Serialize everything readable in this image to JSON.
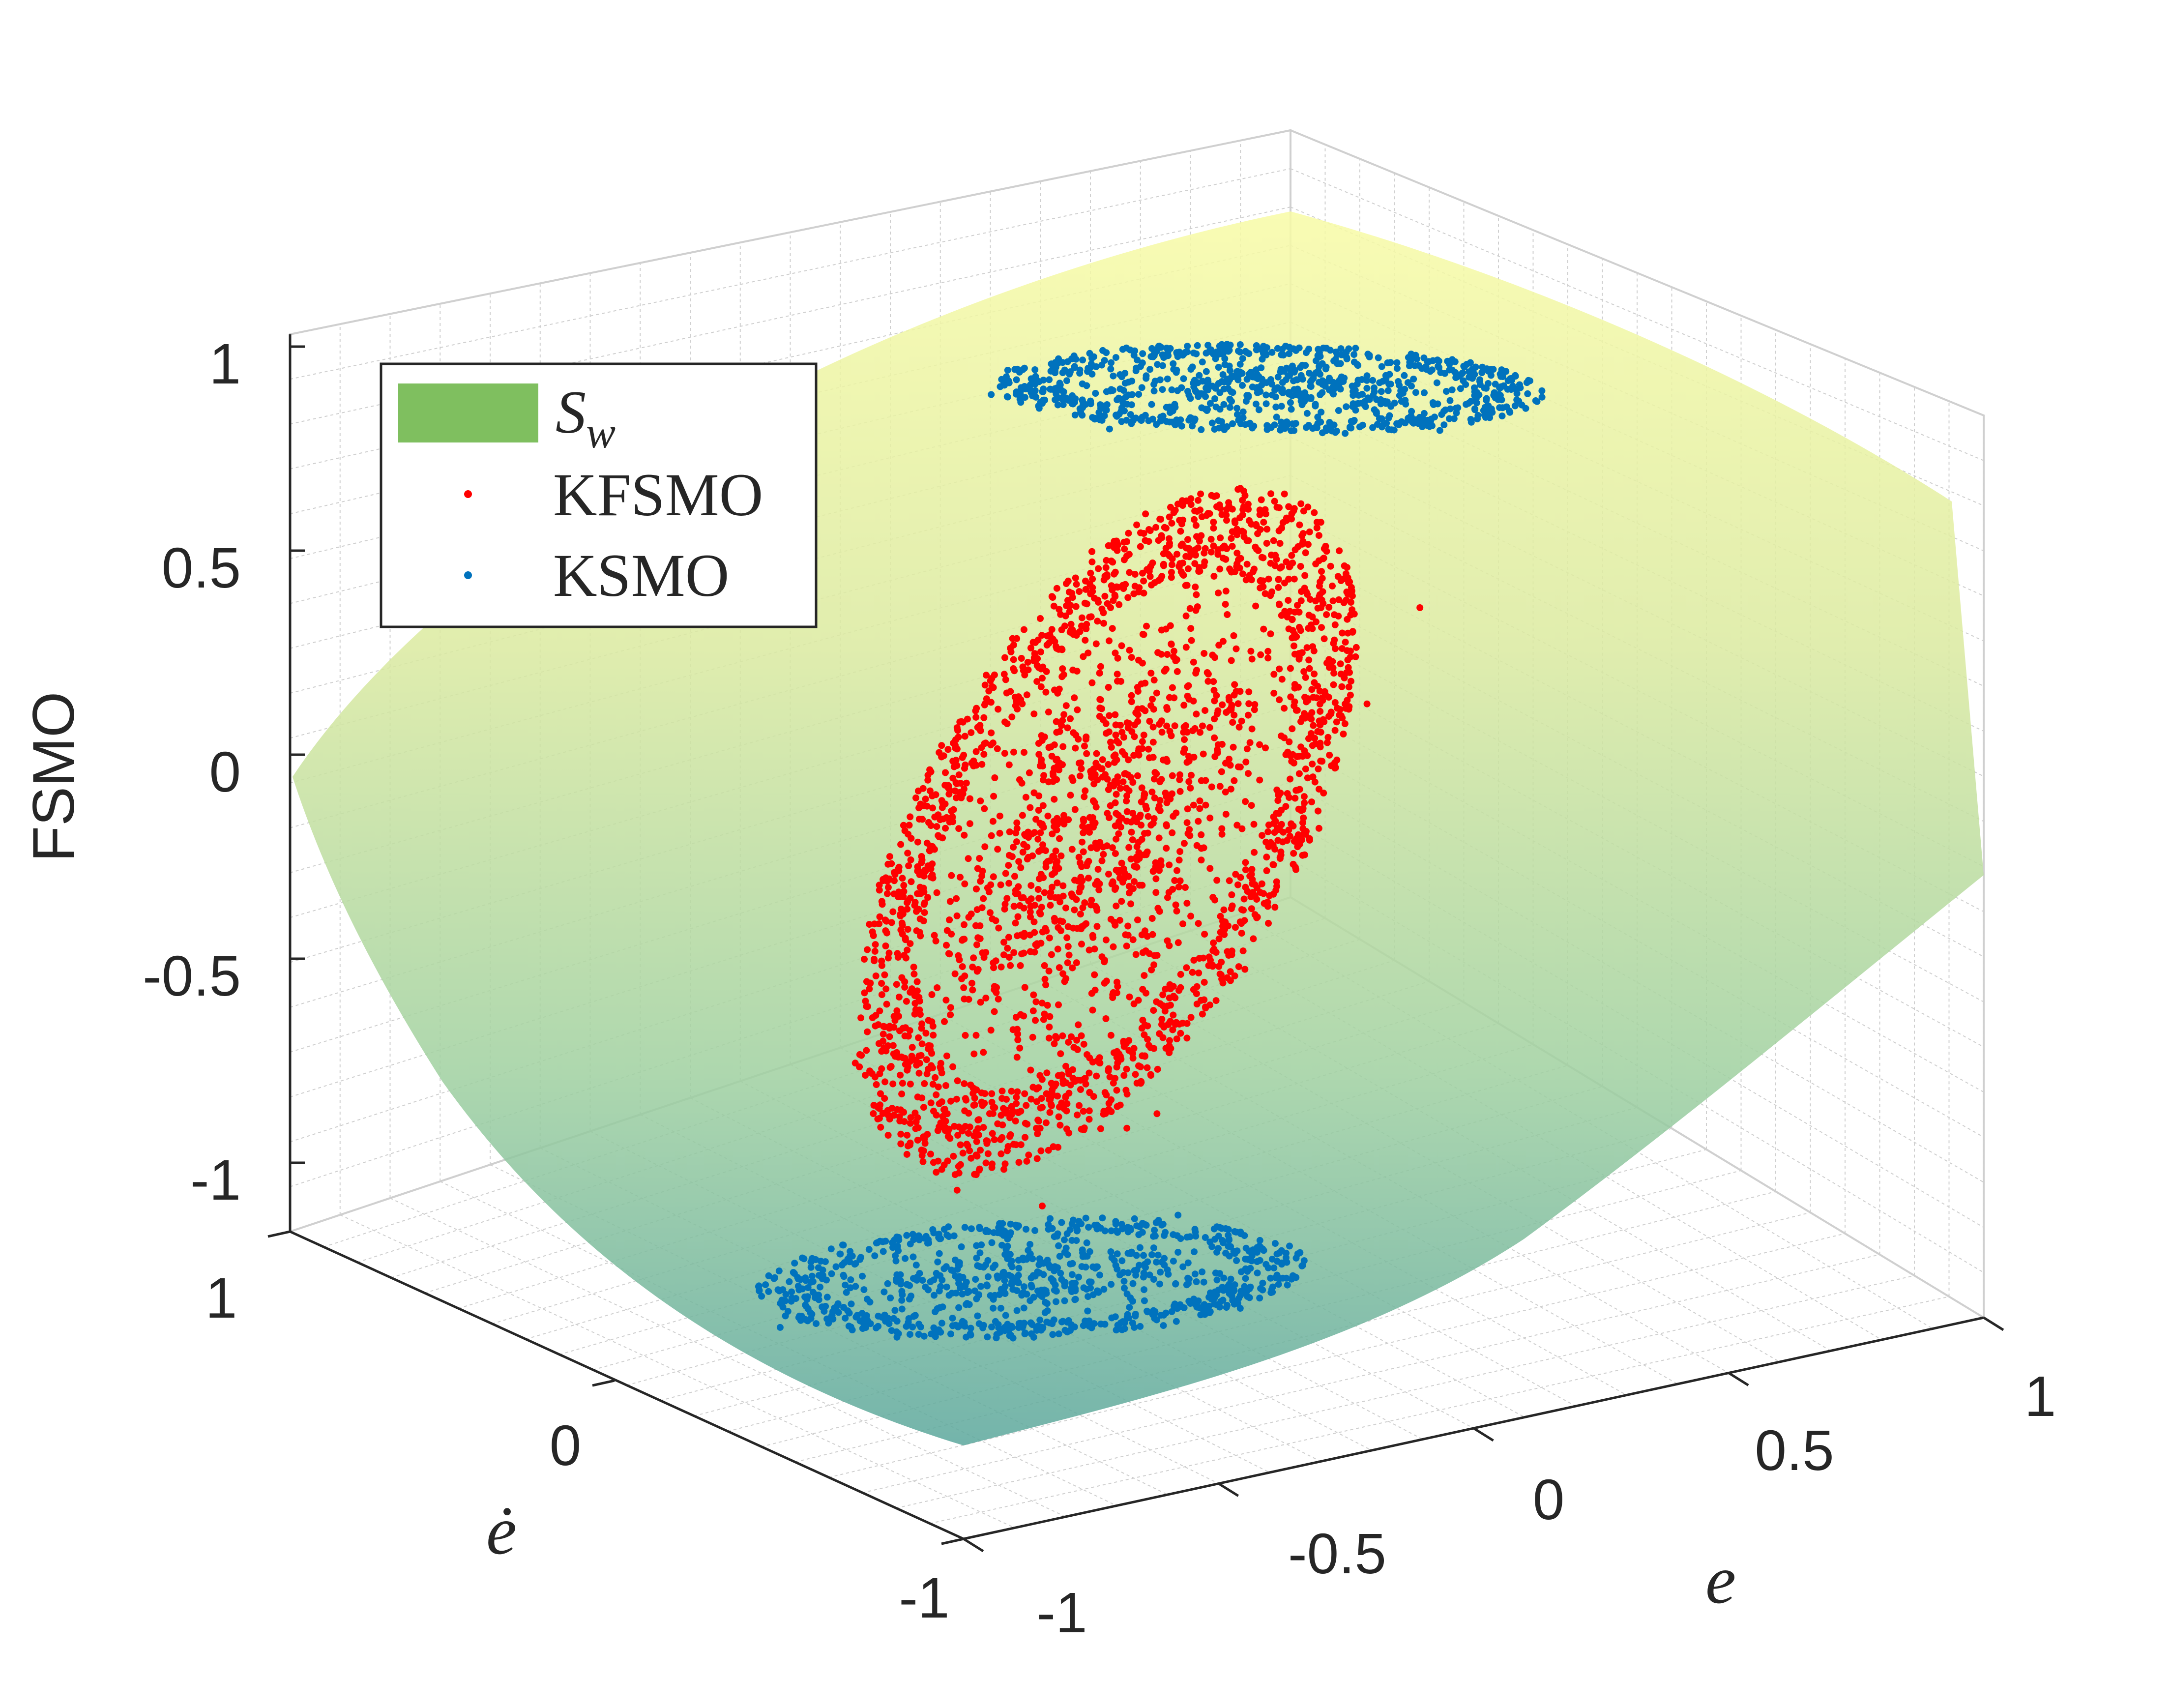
{
  "chart_data": {
    "type": "surface3d-scatter",
    "zlabel": "FSMO",
    "xlabel": "e",
    "ylabel": "ė",
    "xlim": [
      -1,
      1
    ],
    "ylim": [
      -1,
      1
    ],
    "zlim": [
      -1.1,
      1.1
    ],
    "x_ticks": [
      "-1",
      "-0.5",
      "0",
      "0.5",
      "1"
    ],
    "y_ticks": [
      "-1",
      "0",
      "1"
    ],
    "z_ticks": [
      "1",
      "0.5",
      "0",
      "-0.5",
      "-1"
    ],
    "grid": true,
    "legend_position": "top-left",
    "series": [
      {
        "name": "S_w",
        "legend_base": "S",
        "legend_sub": "w",
        "kind": "surface",
        "color": "#7fbf5f"
      },
      {
        "name": "KFSMO",
        "kind": "scatter",
        "color": "#ff0000"
      },
      {
        "name": "KSMO",
        "kind": "scatter",
        "color": "#0072bd"
      }
    ]
  }
}
